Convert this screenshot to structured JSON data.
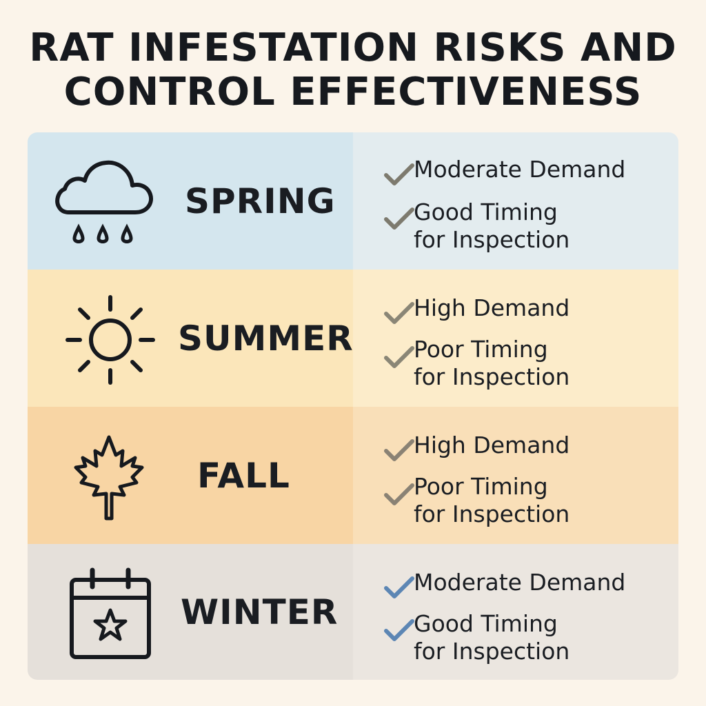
{
  "title": {
    "line1": "RAT INFESTATION RISKS AND",
    "line2": "CONTROL EFFECTIVENESS"
  },
  "seasons": [
    {
      "name": "SPRING",
      "icon": "rain-cloud-icon",
      "items": [
        {
          "line1": "Moderate Demand",
          "line2": ""
        },
        {
          "line1": "Good Timing",
          "line2": "for Inspection"
        }
      ],
      "check_color": "#7d7a6e"
    },
    {
      "name": "SUMMER",
      "icon": "sun-icon",
      "items": [
        {
          "line1": "High Demand",
          "line2": ""
        },
        {
          "line1": "Poor Timing",
          "line2": "for Inspection"
        }
      ],
      "check_color": "#8a8676"
    },
    {
      "name": "FALL",
      "icon": "maple-leaf-icon",
      "items": [
        {
          "line1": "High Demand",
          "line2": ""
        },
        {
          "line1": "Poor Timing",
          "line2": "for Inspection"
        }
      ],
      "check_color": "#8a8274"
    },
    {
      "name": "WINTER",
      "icon": "calendar-star-icon",
      "items": [
        {
          "line1": "Moderate Demand",
          "line2": ""
        },
        {
          "line1": "Good Timing",
          "line2": "for Inspection"
        }
      ],
      "check_color": "#5c86b4"
    }
  ],
  "colors": {
    "background": "#fbf4ea",
    "spring": "#d4e6ee",
    "summer": "#fbe6ba",
    "fall": "#f8d5a4",
    "winter": "#e5e0da"
  }
}
